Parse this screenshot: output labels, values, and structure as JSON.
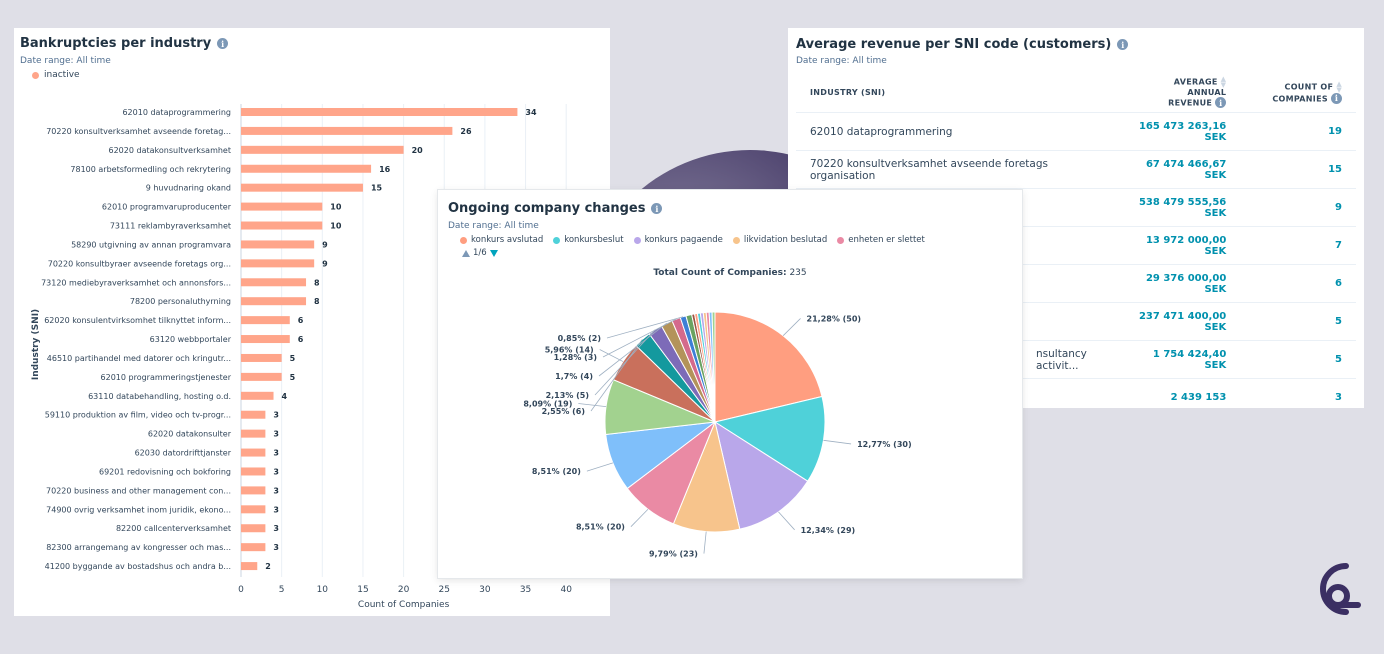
{
  "bar_card": {
    "title": "Bankruptcies per industry",
    "date_range": "Date range: All time",
    "legend": "inactive",
    "color": "#ffa58a"
  },
  "pie_card": {
    "title": "Ongoing company changes",
    "date_range": "Date range: All time",
    "legend": [
      {
        "label": "konkurs avslutad",
        "color": "#ff9e80"
      },
      {
        "label": "konkursbeslut",
        "color": "#4fd1d9"
      },
      {
        "label": "konkurs pagaende",
        "color": "#b9a7ea"
      },
      {
        "label": "likvidation beslutad",
        "color": "#f7c48c"
      },
      {
        "label": "enheten er slettet",
        "color": "#ea8aa4"
      }
    ],
    "pager": "1/6",
    "total_label": "Total Count of Companies:",
    "total_value": "235"
  },
  "table_card": {
    "title": "Average revenue per SNI code (customers)",
    "date_range": "Date range: All time",
    "col_industry": "INDUSTRY (SNI)",
    "col_revenue": [
      "AVERAGE",
      "ANNUAL",
      "REVENUE"
    ],
    "col_count": [
      "COUNT OF",
      "COMPANIES"
    ],
    "rows": [
      {
        "industry": "62010 dataprogrammering",
        "revenue": "165 473 263,16",
        "currency": "SEK",
        "count": "19"
      },
      {
        "industry": "70220 konsultverksamhet avseende foretags organisation",
        "revenue": "67 474 466,67",
        "currency": "SEK",
        "count": "15"
      },
      {
        "industry": "",
        "revenue": "538 479 555,56",
        "currency": "SEK",
        "count": "9"
      },
      {
        "industry": "",
        "revenue": "13 972 000,00",
        "currency": "SEK",
        "count": "7"
      },
      {
        "industry": "",
        "revenue": "29 376 000,00",
        "currency": "SEK",
        "count": "6"
      },
      {
        "industry": "",
        "revenue": "237 471 400,00",
        "currency": "SEK",
        "count": "5"
      },
      {
        "industry": "nsultancy activit...",
        "revenue": "1 754 424,40",
        "currency": "SEK",
        "count": "5"
      },
      {
        "industry": "",
        "revenue": "2 439 153",
        "currency": "",
        "count": "3"
      }
    ]
  },
  "chart_data": [
    {
      "type": "bar",
      "orientation": "horizontal",
      "title": "Bankruptcies per industry",
      "xlabel": "Count of Companies",
      "ylabel": "Industry (SNI)",
      "xlim": [
        0,
        42
      ],
      "xticks": [
        0,
        5,
        10,
        15,
        20,
        25,
        30,
        35,
        40
      ],
      "grid": true,
      "categories": [
        "62010 dataprogrammering",
        "70220 konsultverksamhet avseende foretag...",
        "62020 datakonsultverksamhet",
        "78100 arbetsformedling och rekrytering",
        "9 huvudnaring okand",
        "62010 programvaruproducenter",
        "73111 reklambyraverksamhet",
        "58290 utgivning av annan programvara",
        "70220 konsultbyraer avseende foretags org...",
        "73120 mediebyraverksamhet och annonsfors...",
        "78200 personaluthyrning",
        "62020 konsulentvirksomhet tilknyttet inform...",
        "63120 webbportaler",
        "46510 partihandel med datorer och kringutr...",
        "62010 programmeringstjenester",
        "63110 databehandling, hosting o.d.",
        "59110 produktion av film, video och tv-progr...",
        "62020 datakonsulter",
        "62030 datordrifttjanster",
        "69201 redovisning och bokforing",
        "70220 business and other management con...",
        "74900 ovrig verksamhet inom juridik, ekono...",
        "82200 callcenterverksamhet",
        "82300 arrangemang av kongresser och mas...",
        "41200 byggande av bostadshus och andra b..."
      ],
      "series": [
        {
          "name": "inactive",
          "values": [
            34,
            26,
            20,
            16,
            15,
            10,
            10,
            9,
            9,
            8,
            8,
            6,
            6,
            5,
            5,
            4,
            3,
            3,
            3,
            3,
            3,
            3,
            3,
            3,
            2
          ]
        }
      ]
    },
    {
      "type": "pie",
      "title": "Ongoing company changes",
      "slices": [
        {
          "value": 50,
          "label": "21,28% (50)",
          "color": "#ff9e80"
        },
        {
          "value": 30,
          "label": "12,77% (30)",
          "color": "#4fd1d9"
        },
        {
          "value": 29,
          "label": "12,34% (29)",
          "color": "#b9a7ea"
        },
        {
          "value": 23,
          "label": "9,79% (23)",
          "color": "#f7c48c"
        },
        {
          "value": 20,
          "label": "8,51% (20)",
          "color": "#ea8aa4"
        },
        {
          "value": 20,
          "label": "8,51% (20)",
          "color": "#7fbffa"
        },
        {
          "value": 19,
          "label": "8,09% (19)",
          "color": "#a2d28f"
        },
        {
          "value": 14,
          "label": "5,96% (14)",
          "color": "#c9705c"
        },
        {
          "value": 6,
          "label": "2,55% (6)",
          "color": "#14999e"
        },
        {
          "value": 5,
          "label": "2,13% (5)",
          "color": "#7d6bb8"
        },
        {
          "value": 4,
          "label": "1,7% (4)",
          "color": "#b3935a"
        },
        {
          "value": 3,
          "label": "1,28% (3)",
          "color": "#d46a8c"
        },
        {
          "value": 2,
          "label": "0,85% (2)",
          "color": "#3d7fd6"
        },
        {
          "value": 2,
          "label": "",
          "color": "#6aa361"
        },
        {
          "value": 1,
          "label": "",
          "color": "#9a5544"
        },
        {
          "value": 1,
          "label": "",
          "color": "#ff9e80"
        },
        {
          "value": 1,
          "label": "",
          "color": "#4fd1d9"
        },
        {
          "value": 1,
          "label": "",
          "color": "#b9a7ea"
        },
        {
          "value": 1,
          "label": "",
          "color": "#f7c48c"
        },
        {
          "value": 1,
          "label": "",
          "color": "#ea8aa4"
        },
        {
          "value": 1,
          "label": "",
          "color": "#7fbffa"
        },
        {
          "value": 1,
          "label": "",
          "color": "#a2d28f"
        }
      ]
    }
  ]
}
